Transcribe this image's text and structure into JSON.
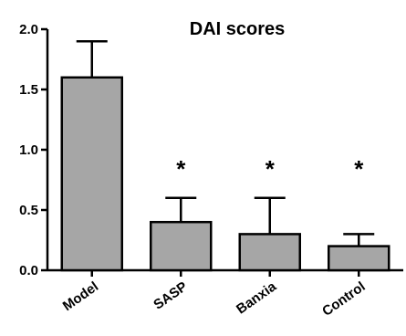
{
  "chart_data": {
    "type": "bar",
    "title": "DAI scores",
    "xlabel": "",
    "ylabel": "",
    "categories": [
      "Model",
      "SASP",
      "Banxia",
      "Control"
    ],
    "values": [
      1.6,
      0.4,
      0.3,
      0.2
    ],
    "error_upper": [
      1.9,
      0.6,
      0.6,
      0.3
    ],
    "significance": [
      "",
      "*",
      "*",
      "*"
    ],
    "ylim": [
      0,
      2.0
    ],
    "yticks": [
      "0.0",
      "0.5",
      "1.0",
      "1.5",
      "2.0"
    ],
    "grid": false,
    "bar_color": "#a6a6a6",
    "edge_color": "#000000"
  }
}
